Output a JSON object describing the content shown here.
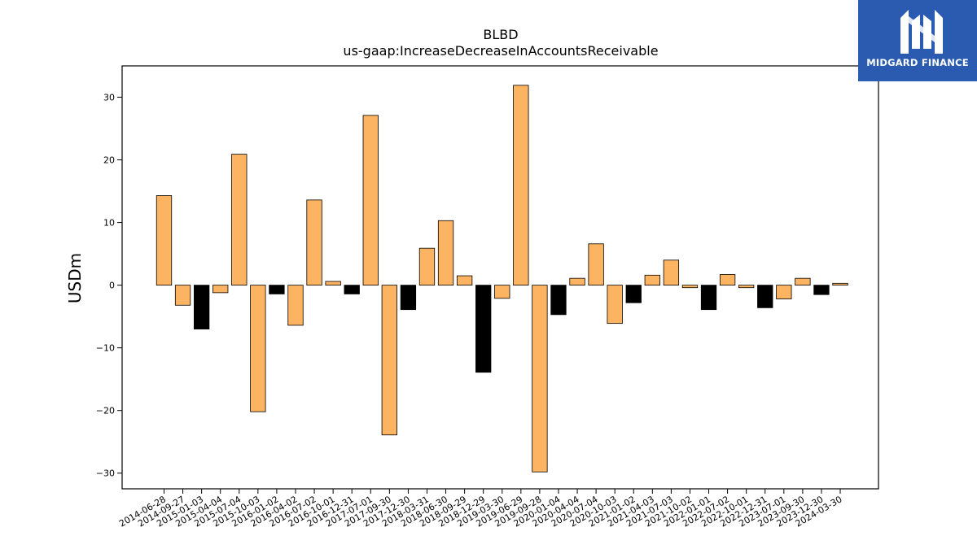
{
  "logo": {
    "brand": "MIDGARD FINANCE",
    "icon": "midgard-m-logo-icon",
    "background": "#2a5bb0"
  },
  "chart_data": {
    "type": "bar",
    "title": "BLBD",
    "subtitle": "us-gaap:IncreaseDecreaseInAccountsReceivable",
    "xlabel": "",
    "ylabel": "USDm",
    "ylim": [
      -32.5,
      35
    ],
    "yticks": [
      -30,
      -20,
      -10,
      0,
      10,
      20,
      30
    ],
    "ytick_labels": [
      "−30",
      "−20",
      "−10",
      "0",
      "10",
      "20",
      "30"
    ],
    "grid": false,
    "colors": {
      "positive_period": "#fdb462",
      "negative_period": "#000000",
      "edge": "#000000"
    },
    "categories": [
      "2014-06-28",
      "2014-09-27",
      "2015-01-03",
      "2015-04-04",
      "2015-07-04",
      "2015-10-03",
      "2016-01-02",
      "2016-04-02",
      "2016-07-02",
      "2016-10-01",
      "2016-12-31",
      "2017-07-01",
      "2017-09-30",
      "2017-12-30",
      "2018-03-31",
      "2018-06-30",
      "2018-09-29",
      "2018-12-29",
      "2019-03-30",
      "2019-06-29",
      "2019-09-28",
      "2020-01-04",
      "2020-04-04",
      "2020-07-04",
      "2020-10-03",
      "2021-01-02",
      "2021-04-03",
      "2021-07-03",
      "2021-10-02",
      "2022-01-01",
      "2022-07-02",
      "2022-10-01",
      "2022-12-31",
      "2023-07-01",
      "2023-09-30",
      "2023-12-30",
      "2024-03-30"
    ],
    "values": [
      14.3,
      -3.2,
      -7.0,
      -1.2,
      20.9,
      -20.2,
      -1.4,
      -6.4,
      13.6,
      0.6,
      -1.4,
      27.1,
      -23.9,
      -3.9,
      5.9,
      10.3,
      1.5,
      -13.9,
      -2.1,
      31.9,
      -29.8,
      -4.7,
      1.1,
      6.6,
      -6.1,
      -2.8,
      1.6,
      4.0,
      -0.4,
      -3.9,
      1.7,
      -0.4,
      -3.6,
      -2.2,
      1.1,
      -1.5,
      0.3
    ],
    "bar_colors": [
      "#fdb462",
      "#fdb462",
      "#000000",
      "#fdb462",
      "#fdb462",
      "#fdb462",
      "#000000",
      "#fdb462",
      "#fdb462",
      "#fdb462",
      "#000000",
      "#fdb462",
      "#fdb462",
      "#000000",
      "#fdb462",
      "#fdb462",
      "#fdb462",
      "#000000",
      "#fdb462",
      "#fdb462",
      "#fdb462",
      "#000000",
      "#fdb462",
      "#fdb462",
      "#fdb462",
      "#000000",
      "#fdb462",
      "#fdb462",
      "#fdb462",
      "#000000",
      "#fdb462",
      "#fdb462",
      "#000000",
      "#fdb462",
      "#fdb462",
      "#000000",
      "#fdb462"
    ]
  }
}
